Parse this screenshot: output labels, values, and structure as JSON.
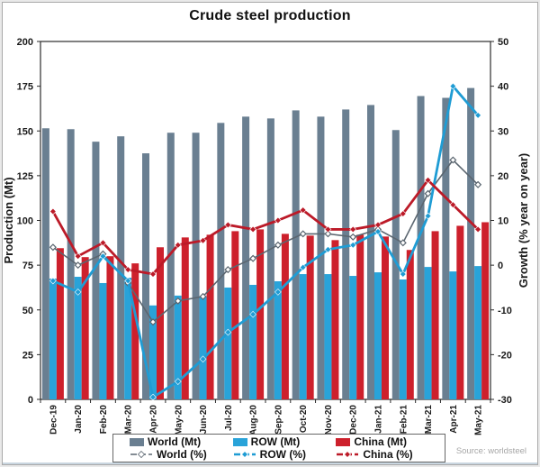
{
  "title": "Crude steel production",
  "source": "Source: worldsteel",
  "axes": {
    "left_label": "Production (Mt)",
    "right_label": "Growth (% year on year)",
    "left_ticks": [
      0,
      25,
      50,
      75,
      100,
      125,
      150,
      175,
      200
    ],
    "right_ticks": [
      -30,
      -20,
      -10,
      0,
      10,
      20,
      30,
      40,
      50
    ]
  },
  "colors": {
    "world_bar": "#6a7f91",
    "row_bar": "#29a3d9",
    "china_bar": "#cd202c",
    "world_line": "#5b6670",
    "row_line": "#1f9cd4",
    "china_line": "#bc1a28",
    "axis": "#2b2b2b",
    "text": "#1a1a1a",
    "source_text": "#a6a6a6"
  },
  "legend": {
    "items": [
      {
        "label": "World (Mt)",
        "kind": "bar",
        "color_key": "world_bar"
      },
      {
        "label": "ROW (Mt)",
        "kind": "bar",
        "color_key": "row_bar"
      },
      {
        "label": "China (Mt)",
        "kind": "bar",
        "color_key": "china_bar"
      },
      {
        "label": "World (%)",
        "kind": "line",
        "color_key": "world_line",
        "marker_fill": "white"
      },
      {
        "label": "ROW (%)",
        "kind": "line",
        "color_key": "row_line",
        "marker_fill": "self"
      },
      {
        "label": "China (%)",
        "kind": "line",
        "color_key": "china_line",
        "marker_fill": "self"
      }
    ]
  },
  "chart_data": {
    "type": "bar+line",
    "title": "Crude steel production",
    "categories": [
      "Dec-19",
      "Jan-20",
      "Feb-20",
      "Mar-20",
      "Apr-20",
      "May-20",
      "Jun-20",
      "Jul-20",
      "Aug-20",
      "Sep-20",
      "Oct-20",
      "Nov-20",
      "Dec-20",
      "Jan-21",
      "Feb-21",
      "Mar-21",
      "Apr-21",
      "May-21"
    ],
    "left_ylim": [
      0,
      200
    ],
    "right_ylim": [
      -30,
      50
    ],
    "xlabel": "",
    "ylabel_left": "Production (Mt)",
    "ylabel_right": "Growth (% year on year)",
    "grid": false,
    "legend_position": "bottom",
    "bar_series": [
      {
        "name": "World (Mt)",
        "axis": "left",
        "color_key": "world_bar",
        "values": [
          151.5,
          151,
          144,
          147,
          137.5,
          149,
          149,
          154.5,
          158,
          157,
          161.5,
          158,
          162,
          164.5,
          150.5,
          169.5,
          168.5,
          174
        ]
      },
      {
        "name": "ROW (Mt)",
        "axis": "left",
        "color_key": "row_bar",
        "values": [
          67.5,
          68.5,
          65,
          68,
          52.5,
          58,
          57.5,
          62.5,
          64,
          66,
          70,
          70,
          69,
          71,
          67,
          74,
          71.5,
          74.5
        ]
      },
      {
        "name": "China (Mt)",
        "axis": "left",
        "color_key": "china_bar",
        "values": [
          84.5,
          79.5,
          80,
          76,
          85,
          90.5,
          92,
          94,
          95,
          92.5,
          91.5,
          89,
          92,
          91,
          83.5,
          94,
          97,
          99
        ]
      }
    ],
    "line_series": [
      {
        "name": "World (%)",
        "axis": "right",
        "color_key": "world_line",
        "width": 1.6,
        "marker_fill": "white",
        "values": [
          4,
          0,
          2.5,
          -4,
          -12.7,
          -8,
          -7,
          -1,
          1.5,
          4.5,
          7,
          7,
          6.3,
          8,
          5,
          16,
          23.5,
          18
        ]
      },
      {
        "name": "ROW (%)",
        "axis": "right",
        "color_key": "row_line",
        "width": 2.8,
        "marker_fill": "self",
        "values": [
          -3.5,
          -6,
          2,
          -3.5,
          -29.5,
          -26,
          -21,
          -15,
          -11,
          -6,
          -0.5,
          3.5,
          4.5,
          7.5,
          -2,
          11,
          40,
          33.5
        ]
      },
      {
        "name": "China (%)",
        "axis": "right",
        "color_key": "china_line",
        "width": 2.8,
        "marker_fill": "self",
        "values": [
          12,
          2,
          5,
          -1,
          -2,
          4.5,
          5.5,
          9,
          8,
          10,
          12.3,
          8,
          8,
          9,
          11.5,
          19,
          13.5,
          8
        ]
      }
    ]
  }
}
